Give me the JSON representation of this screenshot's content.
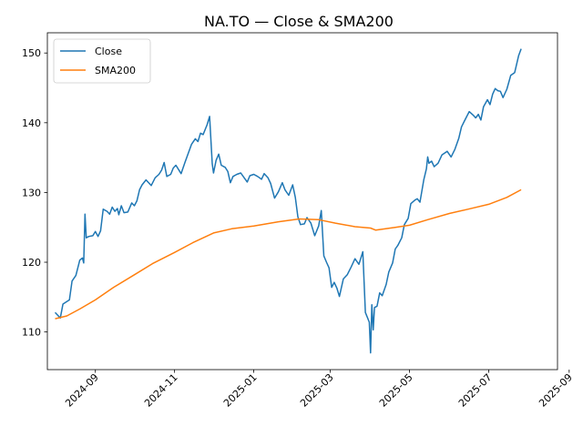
{
  "chart_data": {
    "type": "line",
    "title": "NA.TO — Close & SMA200",
    "xlabel": "",
    "ylabel": "",
    "x_range": [
      "2024-07-26",
      "2025-08-23"
    ],
    "ylim": [
      104.6,
      152.9
    ],
    "x_ticks": [
      {
        "date": "2024-09-01",
        "label": "2024-09"
      },
      {
        "date": "2024-11-01",
        "label": "2024-11"
      },
      {
        "date": "2025-01-01",
        "label": "2025-01"
      },
      {
        "date": "2025-03-01",
        "label": "2025-03"
      },
      {
        "date": "2025-05-01",
        "label": "2025-05"
      },
      {
        "date": "2025-07-01",
        "label": "2025-07"
      },
      {
        "date": "2025-09-01",
        "label": "2025-09"
      }
    ],
    "y_ticks": [
      110,
      120,
      130,
      140,
      150
    ],
    "grid": false,
    "legend_position": "upper-left",
    "series": [
      {
        "name": "Close",
        "color": "#1f77b4",
        "points": [
          [
            "2024-08-01",
            112.8
          ],
          [
            "2024-08-05",
            112.0
          ],
          [
            "2024-08-07",
            114.0
          ],
          [
            "2024-08-12",
            114.6
          ],
          [
            "2024-08-14",
            117.3
          ],
          [
            "2024-08-17",
            118.1
          ],
          [
            "2024-08-20",
            120.3
          ],
          [
            "2024-08-22",
            120.6
          ],
          [
            "2024-08-23",
            119.9
          ],
          [
            "2024-08-24",
            126.9
          ],
          [
            "2024-08-25",
            123.5
          ],
          [
            "2024-08-27",
            123.7
          ],
          [
            "2024-08-30",
            123.8
          ],
          [
            "2024-09-01",
            124.4
          ],
          [
            "2024-09-03",
            123.7
          ],
          [
            "2024-09-05",
            124.5
          ],
          [
            "2024-09-07",
            127.6
          ],
          [
            "2024-09-10",
            127.3
          ],
          [
            "2024-09-12",
            126.9
          ],
          [
            "2024-09-14",
            127.9
          ],
          [
            "2024-09-16",
            127.3
          ],
          [
            "2024-09-18",
            127.7
          ],
          [
            "2024-09-19",
            126.8
          ],
          [
            "2024-09-21",
            128.1
          ],
          [
            "2024-09-23",
            127.1
          ],
          [
            "2024-09-26",
            127.2
          ],
          [
            "2024-09-29",
            128.5
          ],
          [
            "2024-10-01",
            128.1
          ],
          [
            "2024-10-03",
            128.8
          ],
          [
            "2024-10-05",
            130.4
          ],
          [
            "2024-10-07",
            131.1
          ],
          [
            "2024-10-10",
            131.8
          ],
          [
            "2024-10-14",
            131.0
          ],
          [
            "2024-10-17",
            132.1
          ],
          [
            "2024-10-20",
            132.6
          ],
          [
            "2024-10-22",
            133.2
          ],
          [
            "2024-10-24",
            134.3
          ],
          [
            "2024-10-26",
            132.3
          ],
          [
            "2024-10-29",
            132.6
          ],
          [
            "2024-10-31",
            133.5
          ],
          [
            "2024-11-02",
            133.9
          ],
          [
            "2024-11-06",
            132.7
          ],
          [
            "2024-11-09",
            134.3
          ],
          [
            "2024-11-14",
            136.9
          ],
          [
            "2024-11-17",
            137.7
          ],
          [
            "2024-11-19",
            137.3
          ],
          [
            "2024-11-21",
            138.5
          ],
          [
            "2024-11-23",
            138.3
          ],
          [
            "2024-11-26",
            139.7
          ],
          [
            "2024-11-28",
            140.9
          ],
          [
            "2024-11-30",
            134.1
          ],
          [
            "2024-12-01",
            132.8
          ],
          [
            "2024-12-03",
            134.6
          ],
          [
            "2024-12-05",
            135.5
          ],
          [
            "2024-12-07",
            133.9
          ],
          [
            "2024-12-10",
            133.6
          ],
          [
            "2024-12-12",
            133.0
          ],
          [
            "2024-12-14",
            131.4
          ],
          [
            "2024-12-16",
            132.3
          ],
          [
            "2024-12-19",
            132.6
          ],
          [
            "2024-12-22",
            132.8
          ],
          [
            "2024-12-25",
            132.0
          ],
          [
            "2024-12-27",
            131.5
          ],
          [
            "2024-12-29",
            132.4
          ],
          [
            "2025-01-01",
            132.6
          ],
          [
            "2025-01-04",
            132.3
          ],
          [
            "2025-01-07",
            131.9
          ],
          [
            "2025-01-09",
            132.7
          ],
          [
            "2025-01-12",
            132.1
          ],
          [
            "2025-01-14",
            131.3
          ],
          [
            "2025-01-17",
            129.2
          ],
          [
            "2025-01-20",
            130.1
          ],
          [
            "2025-01-23",
            131.4
          ],
          [
            "2025-01-25",
            130.4
          ],
          [
            "2025-01-28",
            129.6
          ],
          [
            "2025-01-31",
            131.1
          ],
          [
            "2025-02-02",
            129.3
          ],
          [
            "2025-02-04",
            126.5
          ],
          [
            "2025-02-06",
            125.4
          ],
          [
            "2025-02-09",
            125.5
          ],
          [
            "2025-02-11",
            126.4
          ],
          [
            "2025-02-14",
            125.6
          ],
          [
            "2025-02-17",
            123.8
          ],
          [
            "2025-02-20",
            125.2
          ],
          [
            "2025-02-22",
            127.4
          ],
          [
            "2025-02-24",
            120.9
          ],
          [
            "2025-02-26",
            120.0
          ],
          [
            "2025-02-28",
            119.2
          ],
          [
            "2025-03-02",
            116.4
          ],
          [
            "2025-03-04",
            117.1
          ],
          [
            "2025-03-06",
            116.3
          ],
          [
            "2025-03-08",
            115.1
          ],
          [
            "2025-03-11",
            117.6
          ],
          [
            "2025-03-14",
            118.2
          ],
          [
            "2025-03-17",
            119.3
          ],
          [
            "2025-03-20",
            120.5
          ],
          [
            "2025-03-23",
            119.7
          ],
          [
            "2025-03-26",
            121.5
          ],
          [
            "2025-03-28",
            112.8
          ],
          [
            "2025-03-31",
            111.4
          ],
          [
            "2025-04-01",
            107.0
          ],
          [
            "2025-04-02",
            113.9
          ],
          [
            "2025-04-03",
            110.3
          ],
          [
            "2025-04-04",
            113.5
          ],
          [
            "2025-04-06",
            113.7
          ],
          [
            "2025-04-08",
            115.6
          ],
          [
            "2025-04-10",
            115.2
          ],
          [
            "2025-04-13",
            116.8
          ],
          [
            "2025-04-15",
            118.6
          ],
          [
            "2025-04-18",
            119.9
          ],
          [
            "2025-04-20",
            121.9
          ],
          [
            "2025-04-22",
            122.4
          ],
          [
            "2025-04-25",
            123.5
          ],
          [
            "2025-04-27",
            125.4
          ],
          [
            "2025-04-30",
            126.3
          ],
          [
            "2025-05-02",
            128.4
          ],
          [
            "2025-05-05",
            128.9
          ],
          [
            "2025-05-07",
            129.1
          ],
          [
            "2025-05-09",
            128.6
          ],
          [
            "2025-05-12",
            131.8
          ],
          [
            "2025-05-14",
            133.4
          ],
          [
            "2025-05-15",
            135.1
          ],
          [
            "2025-05-16",
            134.2
          ],
          [
            "2025-05-18",
            134.5
          ],
          [
            "2025-05-20",
            133.7
          ],
          [
            "2025-05-23",
            134.2
          ],
          [
            "2025-05-26",
            135.4
          ],
          [
            "2025-05-30",
            135.9
          ],
          [
            "2025-06-02",
            135.1
          ],
          [
            "2025-06-05",
            136.2
          ],
          [
            "2025-06-08",
            137.8
          ],
          [
            "2025-06-10",
            139.4
          ],
          [
            "2025-06-13",
            140.5
          ],
          [
            "2025-06-16",
            141.6
          ],
          [
            "2025-06-19",
            141.1
          ],
          [
            "2025-06-21",
            140.7
          ],
          [
            "2025-06-23",
            141.2
          ],
          [
            "2025-06-25",
            140.4
          ],
          [
            "2025-06-27",
            142.3
          ],
          [
            "2025-06-30",
            143.3
          ],
          [
            "2025-07-02",
            142.6
          ],
          [
            "2025-07-04",
            144.1
          ],
          [
            "2025-07-06",
            144.9
          ],
          [
            "2025-07-08",
            144.6
          ],
          [
            "2025-07-10",
            144.5
          ],
          [
            "2025-07-12",
            143.6
          ],
          [
            "2025-07-15",
            144.8
          ],
          [
            "2025-07-18",
            146.8
          ],
          [
            "2025-07-21",
            147.2
          ],
          [
            "2025-07-24",
            149.6
          ],
          [
            "2025-07-26",
            150.6
          ]
        ]
      },
      {
        "name": "SMA200",
        "color": "#ff7f0e",
        "points": [
          [
            "2024-08-01",
            111.9
          ],
          [
            "2024-08-10",
            112.3
          ],
          [
            "2024-08-20",
            113.3
          ],
          [
            "2024-09-01",
            114.6
          ],
          [
            "2024-09-15",
            116.4
          ],
          [
            "2024-10-01",
            118.2
          ],
          [
            "2024-10-15",
            119.8
          ],
          [
            "2024-11-01",
            121.4
          ],
          [
            "2024-11-15",
            122.8
          ],
          [
            "2024-12-01",
            124.2
          ],
          [
            "2024-12-15",
            124.8
          ],
          [
            "2025-01-01",
            125.2
          ],
          [
            "2025-01-20",
            125.8
          ],
          [
            "2025-02-05",
            126.2
          ],
          [
            "2025-02-20",
            126.1
          ],
          [
            "2025-03-05",
            125.6
          ],
          [
            "2025-03-20",
            125.1
          ],
          [
            "2025-04-01",
            124.9
          ],
          [
            "2025-04-05",
            124.6
          ],
          [
            "2025-04-20",
            125.0
          ],
          [
            "2025-05-01",
            125.3
          ],
          [
            "2025-05-15",
            126.1
          ],
          [
            "2025-06-01",
            127.0
          ],
          [
            "2025-06-15",
            127.6
          ],
          [
            "2025-07-01",
            128.3
          ],
          [
            "2025-07-15",
            129.3
          ],
          [
            "2025-07-26",
            130.4
          ]
        ]
      }
    ]
  }
}
